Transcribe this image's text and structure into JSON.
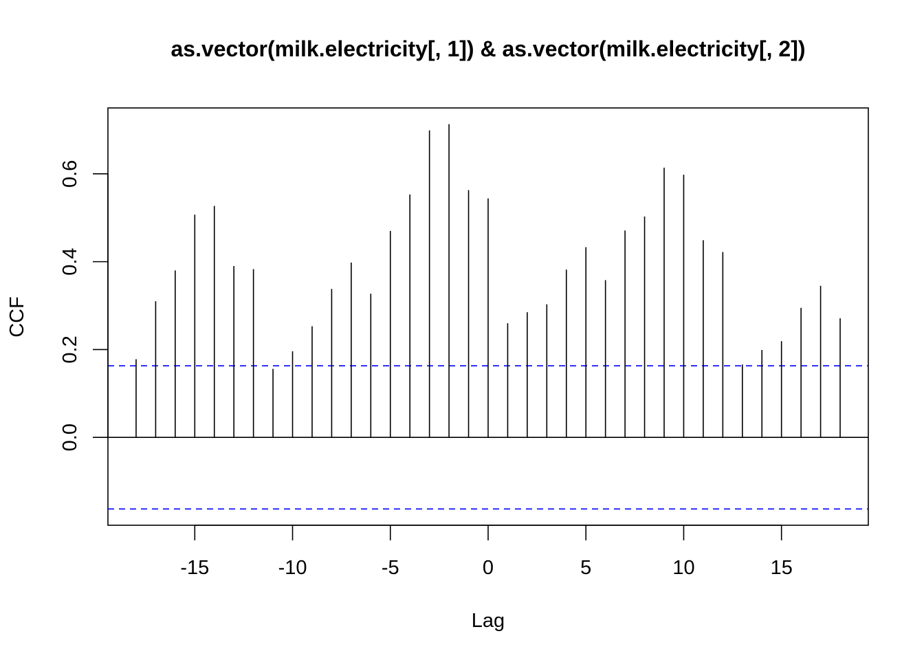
{
  "chart_data": {
    "type": "bar",
    "title": "as.vector(milk.electricity[, 1]) & as.vector(milk.electricity[, 2])",
    "xlabel": "Lag",
    "ylabel": "CCF",
    "x": [
      -18,
      -17,
      -16,
      -15,
      -14,
      -13,
      -12,
      -11,
      -10,
      -9,
      -8,
      -7,
      -6,
      -5,
      -4,
      -3,
      -2,
      -1,
      0,
      1,
      2,
      3,
      4,
      5,
      6,
      7,
      8,
      9,
      10,
      11,
      12,
      13,
      14,
      15,
      16,
      17,
      18
    ],
    "values": [
      0.178,
      0.31,
      0.38,
      0.507,
      0.527,
      0.39,
      0.383,
      0.156,
      0.196,
      0.253,
      0.338,
      0.398,
      0.327,
      0.47,
      0.553,
      0.699,
      0.713,
      0.563,
      0.544,
      0.26,
      0.285,
      0.303,
      0.382,
      0.433,
      0.358,
      0.471,
      0.503,
      0.614,
      0.598,
      0.449,
      0.422,
      0.166,
      0.199,
      0.219,
      0.295,
      0.345,
      0.271
    ],
    "xlim": [
      -19.44,
      19.44
    ],
    "ylim": [
      -0.2,
      0.75
    ],
    "xticks": [
      -15,
      -10,
      -5,
      0,
      5,
      10,
      15
    ],
    "xtick_labels": [
      "-15",
      "-10",
      "-5",
      "0",
      "5",
      "10",
      "15"
    ],
    "yticks": [
      0.0,
      0.2,
      0.4,
      0.6
    ],
    "ytick_labels": [
      "0.0",
      "0.2",
      "0.4",
      "0.6"
    ],
    "confidence_bounds": [
      0.163,
      -0.163
    ],
    "zero_line": true,
    "grid": false,
    "colors": {
      "bars": "#000000",
      "confidence": "#0000ff",
      "axes": "#000000"
    }
  }
}
